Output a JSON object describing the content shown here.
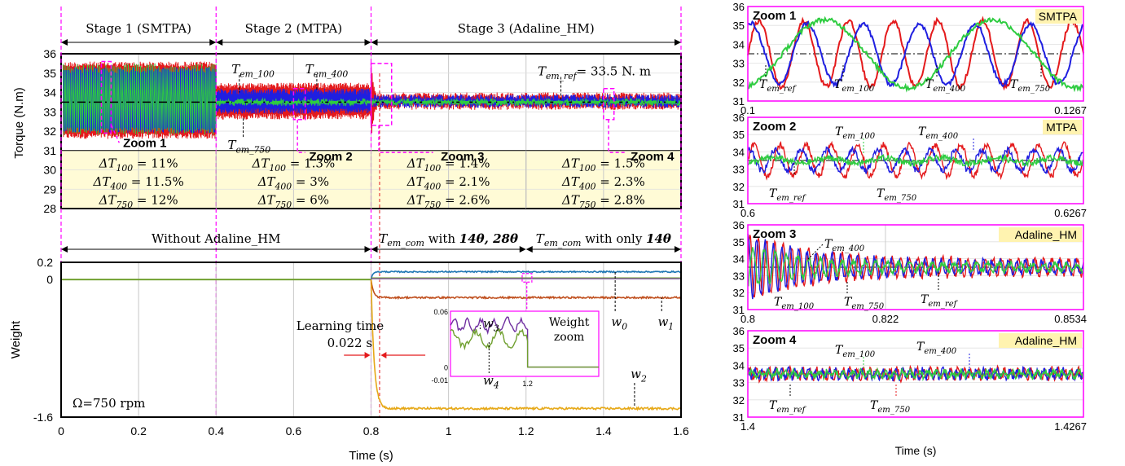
{
  "colors": {
    "red": "#e41a1c",
    "blue": "#1f1fe0",
    "green": "#2ecc40",
    "magenta": "#ff00ff",
    "yellowbox": "#fffbd6",
    "w0": "#1f77b4",
    "w1": "#c0501f",
    "w2": "#e6a817",
    "w3": "#7030a0",
    "w4": "#70a030"
  },
  "chart_data": [
    {
      "type": "line",
      "id": "torque",
      "ylabel": "Torque (N.m)",
      "ylim": [
        28,
        36
      ],
      "yticks": [
        "28",
        "29",
        "30",
        "31",
        "32",
        "33",
        "34",
        "35",
        "36"
      ],
      "xlim": [
        0,
        1.6
      ],
      "stages": [
        {
          "label": "Stage 1 (SMTPA)",
          "from": 0,
          "to": 0.4
        },
        {
          "label": "Stage 2 (MTPA)",
          "from": 0.4,
          "to": 0.8
        },
        {
          "label": "Stage 3 (Adaline_HM)",
          "from": 0.8,
          "to": 1.6
        }
      ],
      "ripple_envelopes": [
        {
          "stage": 1,
          "T750": [
            31.6,
            35.6
          ],
          "T400": [
            31.9,
            35.3
          ],
          "T100": [
            31.8,
            35.5
          ]
        },
        {
          "stage": 2,
          "T750": [
            32.6,
            34.5
          ],
          "T400": [
            32.9,
            34.2
          ],
          "T100": [
            33.3,
            33.7
          ]
        },
        {
          "stage": 3,
          "T750": [
            33.1,
            34.0
          ],
          "T400": [
            33.2,
            33.9
          ],
          "T100": [
            33.3,
            33.7
          ]
        }
      ],
      "ref_value": 33.5,
      "labels": {
        "t100": "T",
        "t100sub": "em_100",
        "t400": "T",
        "t400sub": "em_400",
        "t750": "T",
        "t750sub": "em_750",
        "tref": "T",
        "trefsub": "em_ref",
        "tref_value": "= 33.5 N. m"
      },
      "zooms": [
        "Zoom 1",
        "Zoom 2",
        "Zoom 3",
        "Zoom 4"
      ],
      "ripple_table": [
        {
          "r100": "ΔT",
          "r100sub": "100",
          "r100val": " = 11%",
          "r400": "ΔT",
          "r400sub": "400",
          "r400val": " = 11.5%",
          "r750": "ΔT",
          "r750sub": "750",
          "r750val": " = 12%"
        },
        {
          "r100": "ΔT",
          "r100sub": "100",
          "r100val": " = 1.3%",
          "r400": "ΔT",
          "r400sub": "400",
          "r400val": " = 3%",
          "r750": "ΔT",
          "r750sub": "750",
          "r750val": " = 6%"
        },
        {
          "r100": "ΔT",
          "r100sub": "100",
          "r100val": " = 1.4%",
          "r400": "ΔT",
          "r400sub": "400",
          "r400val": " = 2.1%",
          "r750": "ΔT",
          "r750sub": "750",
          "r750val": " = 2.6%"
        },
        {
          "r100": "ΔT",
          "r100sub": "100",
          "r100val": " = 1.5%",
          "r400": "ΔT",
          "r400sub": "400",
          "r400val": " = 2.3%",
          "r750": "ΔT",
          "r750sub": "750",
          "r750val": " = 2.8%"
        }
      ]
    },
    {
      "type": "line",
      "id": "weight",
      "ylabel": "Weight",
      "xlabel": "Time (s)",
      "ylim": [
        -1.6,
        0.2
      ],
      "yticks": [
        "-1.6",
        "0",
        "0.2"
      ],
      "xlim": [
        0,
        1.6
      ],
      "xticks": [
        "0",
        "0.2",
        "0.4",
        "0.6",
        "0.8",
        "1",
        "1.2",
        "1.4",
        "1.6"
      ],
      "segments": [
        {
          "label": "Without Adaline_HM",
          "from": 0,
          "to": 0.8
        },
        {
          "label_a": "T",
          "label_sub": "em_com",
          "label_b": " with ",
          "label_c": "14θ, 28θ",
          "from": 0.8,
          "to": 1.2
        },
        {
          "label_a": "T",
          "label_sub": "em_com",
          "label_b": " with only ",
          "label_c": "14θ",
          "from": 1.2,
          "to": 1.6
        }
      ],
      "series": [
        {
          "name": "w0",
          "steady": 0.09
        },
        {
          "name": "w1",
          "steady": -0.21
        },
        {
          "name": "w2",
          "steady": -1.5
        }
      ],
      "learning_time_label": "Learning time",
      "learning_time_value": "0.022 s",
      "speed": "Ω=750 rpm",
      "inset": {
        "title_a": "Weight",
        "title_b": "zoom",
        "yticks": [
          "0.06",
          "0",
          "-0.01"
        ],
        "xtick": "1.2",
        "w3": "w",
        "w3sub": "3",
        "w4": "w",
        "w4sub": "4"
      }
    },
    {
      "type": "line",
      "id": "zoom1",
      "title": "Zoom 1",
      "tag": "SMTPA",
      "ylim": [
        31,
        36
      ],
      "yticks": [
        "31",
        "32",
        "33",
        "34",
        "35",
        "36"
      ],
      "xlim": [
        0.1,
        0.1267
      ],
      "xticks": [
        "0.1",
        "0.1267"
      ],
      "series": [
        {
          "name": "T_em_750",
          "amp": 1.75,
          "periods": 7.5
        },
        {
          "name": "T_em_400",
          "amp": 1.6,
          "periods": 6
        },
        {
          "name": "T_em_100",
          "amp": 1.8,
          "periods": 2
        }
      ],
      "labels": [
        "T_em_ref",
        "T_em_100",
        "T_em_400",
        "T_em_750"
      ]
    },
    {
      "type": "line",
      "id": "zoom2",
      "title": "Zoom 2",
      "tag": "MTPA",
      "ylim": [
        31,
        36
      ],
      "yticks": [
        "31",
        "32",
        "33",
        "34",
        "35",
        "36"
      ],
      "xlim": [
        0.6,
        0.6267
      ],
      "xticks": [
        "0.6",
        "0.6267"
      ],
      "labels": [
        "T_em_100",
        "T_em_400",
        "T_em_ref",
        "T_em_750"
      ]
    },
    {
      "type": "line",
      "id": "zoom3",
      "title": "Zoom 3",
      "tag": "Adaline_HM",
      "ylim": [
        31,
        36
      ],
      "yticks": [
        "31",
        "32",
        "33",
        "34",
        "35",
        "36"
      ],
      "xlim": [
        0.8,
        0.8534
      ],
      "xticks": [
        "0.8",
        "0.822",
        "0.8534"
      ],
      "labels": [
        "T_em_400",
        "T_em_100",
        "T_em_750",
        "T_em_ref"
      ]
    },
    {
      "type": "line",
      "id": "zoom4",
      "title": "Zoom 4",
      "tag": "Adaline_HM",
      "ylim": [
        31,
        36
      ],
      "yticks": [
        "31",
        "32",
        "33",
        "34",
        "35",
        "36"
      ],
      "xlim": [
        1.4,
        1.4267
      ],
      "xticks": [
        "1.4",
        "1.4267"
      ],
      "xlabel": "Time (s)",
      "labels": [
        "T_em_100",
        "T_em_400",
        "T_em_ref",
        "T_em_750"
      ]
    }
  ]
}
